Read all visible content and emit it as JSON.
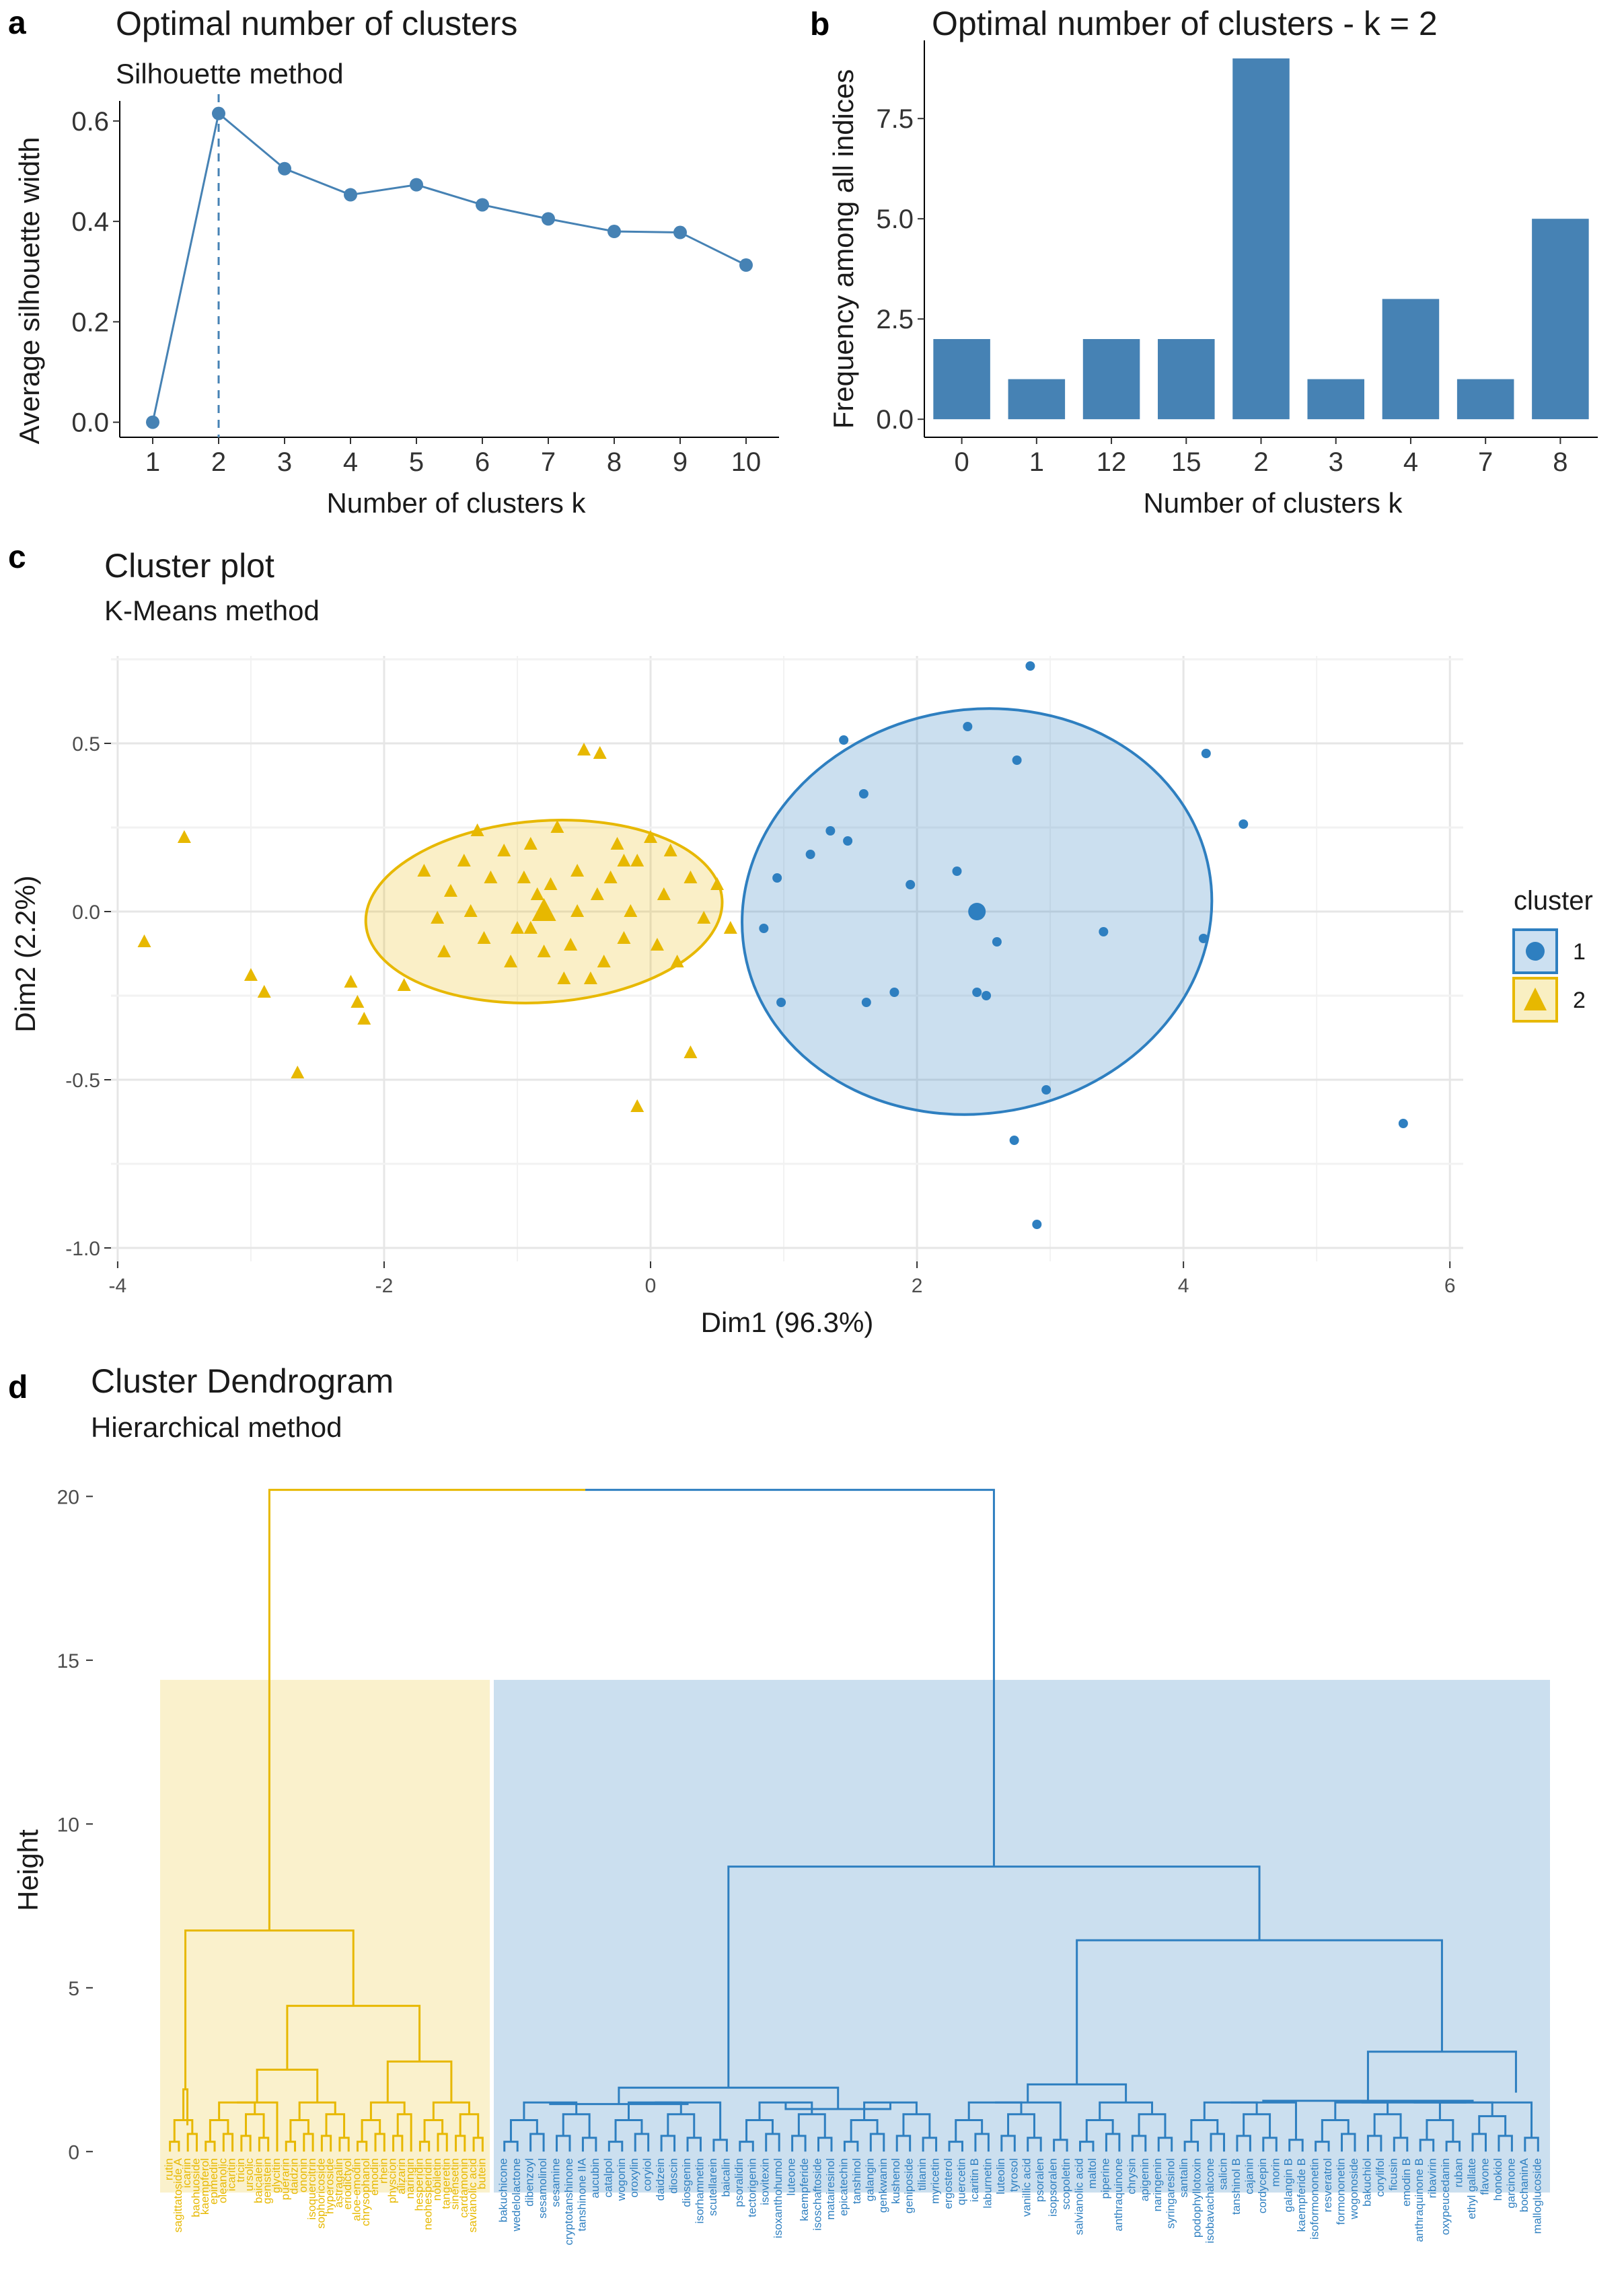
{
  "colors": {
    "yellow": "#E7B800",
    "blue": "#2E7FC0",
    "bar": "#4682B4",
    "line": "#4682B4"
  },
  "chart_data": [
    {
      "id": "a",
      "type": "line",
      "panel_label": "a",
      "title": "Optimal number of clusters",
      "subtitle": "Silhouette method",
      "xlabel": "Number of clusters k",
      "ylabel": "Average silhouette width",
      "x": [
        1,
        2,
        3,
        4,
        5,
        6,
        7,
        8,
        9,
        10
      ],
      "y": [
        0.0,
        0.615,
        0.505,
        0.453,
        0.473,
        0.433,
        0.405,
        0.38,
        0.378,
        0.313
      ],
      "xlim": [
        0.5,
        10.5
      ],
      "ylim": [
        -0.03,
        0.64
      ],
      "yticks": [
        "0.0",
        "0.2",
        "0.4",
        "0.6"
      ],
      "ytick_values": [
        0,
        0.2,
        0.4,
        0.6
      ],
      "xticks": [
        "1",
        "2",
        "3",
        "4",
        "5",
        "6",
        "7",
        "8",
        "9",
        "10"
      ],
      "optimal_k": 2
    },
    {
      "id": "b",
      "type": "bar",
      "panel_label": "b",
      "title": "Optimal number of clusters - k = 2",
      "xlabel": "Number of clusters k",
      "ylabel": "Frequency among all indices",
      "categories": [
        "0",
        "1",
        "12",
        "15",
        "2",
        "3",
        "4",
        "7",
        "8"
      ],
      "values": [
        2,
        1,
        2,
        2,
        9,
        1,
        3,
        1,
        5
      ],
      "ylim": [
        -0.45,
        9.45
      ],
      "yticks": [
        "0.0",
        "2.5",
        "5.0",
        "7.5"
      ],
      "ytick_values": [
        0,
        2.5,
        5,
        7.5
      ]
    },
    {
      "id": "c",
      "type": "scatter",
      "panel_label": "c",
      "title": "Cluster plot",
      "subtitle": "K-Means method",
      "xlabel": "Dim1 (96.3%)",
      "ylabel": "Dim2 (2.2%)",
      "xlim": [
        -4.05,
        6.1
      ],
      "ylim": [
        -1.04,
        0.76
      ],
      "xticks": [
        "-4",
        "-2",
        "0",
        "2",
        "4",
        "6"
      ],
      "xtick_values": [
        -4,
        -2,
        0,
        2,
        4,
        6
      ],
      "yticks": [
        "-1.0",
        "-0.5",
        "0.0",
        "0.5"
      ],
      "ytick_values": [
        -1,
        -0.5,
        0,
        0.5
      ],
      "legend": {
        "title": "cluster",
        "entries": [
          "1",
          "2"
        ],
        "position": "right"
      },
      "series": [
        {
          "name": "2",
          "color": "yellow",
          "marker": "triangle",
          "center": [
            -0.8,
            0.0
          ],
          "ellipse": {
            "cx": -0.8,
            "cy": 0.0,
            "rx": 1.34,
            "ry": 0.27,
            "angle_deg": -4
          },
          "points": [
            [
              -3.5,
              0.22
            ],
            [
              -3.8,
              -0.09
            ],
            [
              -3.0,
              -0.19
            ],
            [
              -2.9,
              -0.24
            ],
            [
              -2.65,
              -0.48
            ],
            [
              -2.25,
              -0.21
            ],
            [
              -2.2,
              -0.27
            ],
            [
              -2.15,
              -0.32
            ],
            [
              -1.85,
              -0.22
            ],
            [
              -1.6,
              -0.02
            ],
            [
              -1.5,
              0.06
            ],
            [
              -1.4,
              0.15
            ],
            [
              -1.3,
              0.24
            ],
            [
              -1.2,
              0.1
            ],
            [
              -1.1,
              0.18
            ],
            [
              -1.0,
              -0.05
            ],
            [
              -0.9,
              0.2
            ],
            [
              -0.85,
              0.05
            ],
            [
              -0.7,
              0.25
            ],
            [
              -0.6,
              -0.1
            ],
            [
              -0.55,
              0.12
            ],
            [
              -0.5,
              0.48
            ],
            [
              -0.45,
              -0.2
            ],
            [
              -0.38,
              0.47
            ],
            [
              -0.3,
              0.1
            ],
            [
              -0.25,
              0.2
            ],
            [
              -0.2,
              -0.08
            ],
            [
              -0.1,
              0.15
            ],
            [
              0.0,
              0.22
            ],
            [
              0.1,
              0.05
            ],
            [
              0.2,
              -0.15
            ],
            [
              0.3,
              0.1
            ],
            [
              0.4,
              -0.02
            ],
            [
              0.5,
              0.08
            ],
            [
              0.6,
              -0.05
            ],
            [
              -1.7,
              0.12
            ],
            [
              -1.55,
              -0.12
            ],
            [
              -1.35,
              0.0
            ],
            [
              -1.05,
              -0.15
            ],
            [
              -0.75,
              0.08
            ],
            [
              -0.65,
              -0.2
            ],
            [
              -0.35,
              -0.15
            ],
            [
              -0.15,
              0.0
            ],
            [
              0.05,
              -0.1
            ],
            [
              0.15,
              0.18
            ],
            [
              -0.1,
              -0.58
            ],
            [
              0.3,
              -0.42
            ],
            [
              -0.9,
              -0.05
            ],
            [
              -1.25,
              -0.08
            ],
            [
              -0.95,
              0.1
            ],
            [
              -0.8,
              -0.12
            ],
            [
              -0.55,
              0.0
            ],
            [
              -0.4,
              0.05
            ],
            [
              -0.2,
              0.15
            ]
          ]
        },
        {
          "name": "1",
          "color": "blue",
          "marker": "circle",
          "center": [
            2.45,
            0.0
          ],
          "ellipse": {
            "cx": 2.45,
            "cy": 0.0,
            "rx": 1.77,
            "ry": 0.6,
            "angle_deg": -10
          },
          "points": [
            [
              0.85,
              -0.05
            ],
            [
              0.95,
              0.1
            ],
            [
              0.98,
              -0.27
            ],
            [
              1.2,
              0.17
            ],
            [
              1.35,
              0.24
            ],
            [
              1.45,
              0.51
            ],
            [
              1.48,
              0.21
            ],
            [
              1.6,
              0.35
            ],
            [
              1.62,
              -0.27
            ],
            [
              1.83,
              -0.24
            ],
            [
              1.95,
              0.08
            ],
            [
              2.3,
              0.12
            ],
            [
              2.38,
              0.55
            ],
            [
              2.45,
              -0.24
            ],
            [
              2.52,
              -0.25
            ],
            [
              2.6,
              -0.09
            ],
            [
              2.73,
              -0.68
            ],
            [
              2.75,
              0.45
            ],
            [
              2.85,
              0.73
            ],
            [
              2.9,
              -0.93
            ],
            [
              2.97,
              -0.53
            ],
            [
              3.4,
              -0.06
            ],
            [
              4.15,
              -0.08
            ],
            [
              4.17,
              0.47
            ],
            [
              4.45,
              0.26
            ],
            [
              5.65,
              -0.63
            ]
          ]
        }
      ]
    },
    {
      "id": "d",
      "type": "dendrogram",
      "panel_label": "d",
      "title": "Cluster Dendrogram",
      "subtitle": "Hierarchical method",
      "ylabel": "Height",
      "ylim": [
        -2.5,
        20.5
      ],
      "yticks": [
        "0",
        "5",
        "10",
        "15",
        "20"
      ],
      "ytick_values": [
        0,
        5,
        10,
        15,
        20
      ],
      "root_height": 20.2,
      "clusters": [
        {
          "name": "2",
          "color": "yellow",
          "merge_height": 6.75,
          "sub_heights": [
            1.9,
            4.45,
            3.4,
            2.75
          ],
          "leaves": [
            "rutin",
            "sagittatoside A",
            "icariin",
            "baohuoside",
            "kaempferol",
            "epimedin",
            "oleanolic",
            "icaritin",
            "tricin",
            "ursolic",
            "baicalein",
            "genistein",
            "glycitin",
            "puerarin",
            "daidzin",
            "ononin",
            "isoquercitrin",
            "sophoricoside",
            "hyperoside",
            "astragalin",
            "eriodictyol",
            "aloe-emodin",
            "chrysophanol",
            "emodin",
            "rhein",
            "physcion",
            "alizarin",
            "naringin",
            "hesperidin",
            "neohesperidin",
            "nobiletin",
            "tangeretin",
            "sinensetin",
            "cardamonin",
            "savianolic acid",
            "butein"
          ]
        },
        {
          "name": "1",
          "color": "blue",
          "merge_height": 8.7,
          "leaves": [
            "bakuchicone",
            "wedelolactone",
            "dibenzoyl",
            "sesamolinol",
            "sesamine",
            "cryptotanshinone",
            "tanshinone IIA",
            "aucubin",
            "catalpol",
            "wogonin",
            "oroxylin",
            "coryiol",
            "daidzein",
            "dioscin",
            "diosgenin",
            "isorhamnetin",
            "scutellarein",
            "baicalin",
            "psoralidin",
            "tectorigenin",
            "isovitexin",
            "isoxanthohumol",
            "luteone",
            "kaempferide",
            "isoschaftoside",
            "matairesinol",
            "epicatechin",
            "tanshinol",
            "galangin",
            "genkwanin",
            "kushenol",
            "geniposide",
            "tilianin",
            "myricetin",
            "ergosterol",
            "quercetin",
            "icaritin B",
            "laburnetin",
            "luteolin",
            "tyrosol",
            "vanillic acid",
            "psoralen",
            "isopsoralen",
            "scopoletin",
            "salvianolic acid",
            "maltol",
            "piperine",
            "anthraquinone",
            "chrysin",
            "apigenin",
            "naringenin",
            "syringaresinol",
            "santalin",
            "podophyllotoxin",
            "isobavachalcone",
            "salicin",
            "tanshinol B",
            "cajanin",
            "cordycepin",
            "morin",
            "galangin B",
            "kaempferide B",
            "isoformononetin",
            "resveratrol",
            "formononetin",
            "wogonoside",
            "bakuchiol",
            "corylifol",
            "ficusin",
            "emodin B",
            "anthraquinone B",
            "ribavirin",
            "oxypeucedanin",
            "ruban",
            "ethyl gallate",
            "flavone",
            "honokiol",
            "garcinone",
            "bochaninA",
            "malloglucoside"
          ]
        }
      ]
    }
  ]
}
